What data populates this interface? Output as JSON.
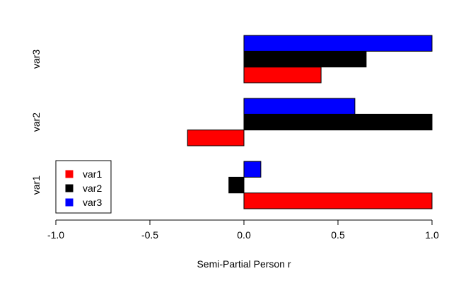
{
  "chart_data": {
    "type": "bar",
    "orientation": "horizontal",
    "grouped": true,
    "categories": [
      "var1",
      "var2",
      "var3"
    ],
    "series": [
      {
        "name": "var1",
        "color": "#ff0000",
        "values": [
          1.0,
          -0.3,
          0.41
        ]
      },
      {
        "name": "var2",
        "color": "#000000",
        "values": [
          -0.08,
          1.0,
          0.65
        ]
      },
      {
        "name": "var3",
        "color": "#0000ff",
        "values": [
          0.09,
          0.59,
          1.0
        ]
      }
    ],
    "xlabel": "Semi-Partial Person r",
    "xlim": [
      -1.0,
      1.0
    ],
    "xticks": [
      -1.0,
      -0.5,
      0.0,
      0.5,
      1.0
    ],
    "xtick_labels": [
      "-1.0",
      "-0.5",
      "0.0",
      "0.5",
      "1.0"
    ],
    "grid": false,
    "legend": {
      "position": "bottom-left",
      "entries": [
        "var1",
        "var2",
        "var3"
      ]
    }
  }
}
